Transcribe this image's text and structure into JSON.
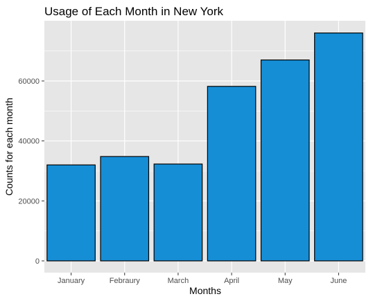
{
  "chart_data": {
    "type": "bar",
    "title": "Usage of Each Month in New York",
    "xlabel": "Months",
    "ylabel": "Counts for each month",
    "categories": [
      "January",
      "Febraury",
      "March",
      "April",
      "May",
      "June"
    ],
    "values": [
      32000,
      34800,
      32300,
      58200,
      67000,
      76000
    ],
    "ylim": [
      0,
      80000
    ],
    "yticks": [
      0,
      20000,
      40000,
      60000
    ],
    "ytick_labels": [
      "0",
      "20000",
      "40000",
      "60000"
    ],
    "grid": true,
    "bar_fill": "#168ed6",
    "bar_stroke": "#000000",
    "panel_background": "#e6e6e6",
    "grid_color": "#ffffff"
  }
}
